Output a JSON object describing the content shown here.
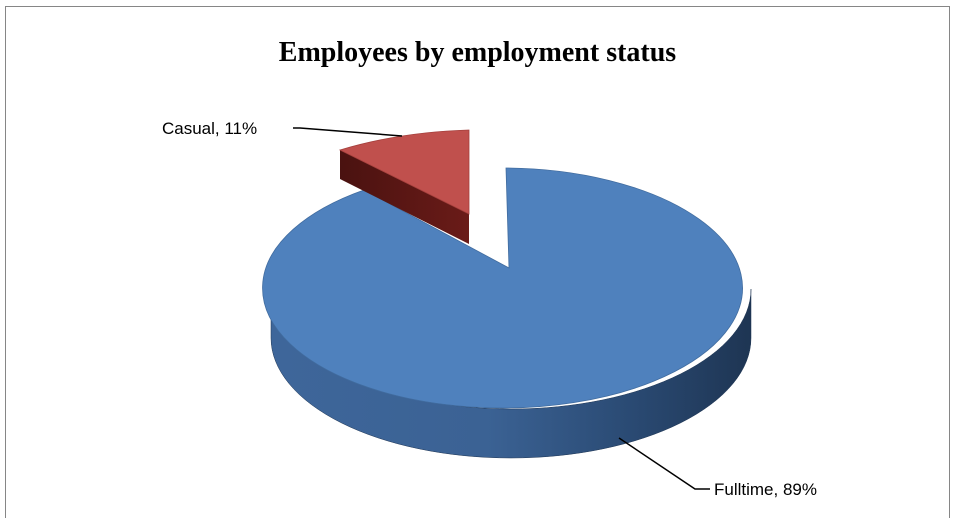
{
  "chart_data": {
    "type": "pie",
    "title": "Employees by employment status",
    "style": "3d-exploded",
    "slices": [
      {
        "label": "Fulltime",
        "value": 89,
        "color": "#4f81bd",
        "data_label": "Fulltime, 89%"
      },
      {
        "label": "Casual",
        "value": 11,
        "color": "#c0504d",
        "data_label": "Casual, 11%",
        "exploded": true
      }
    ],
    "legend": "none"
  }
}
